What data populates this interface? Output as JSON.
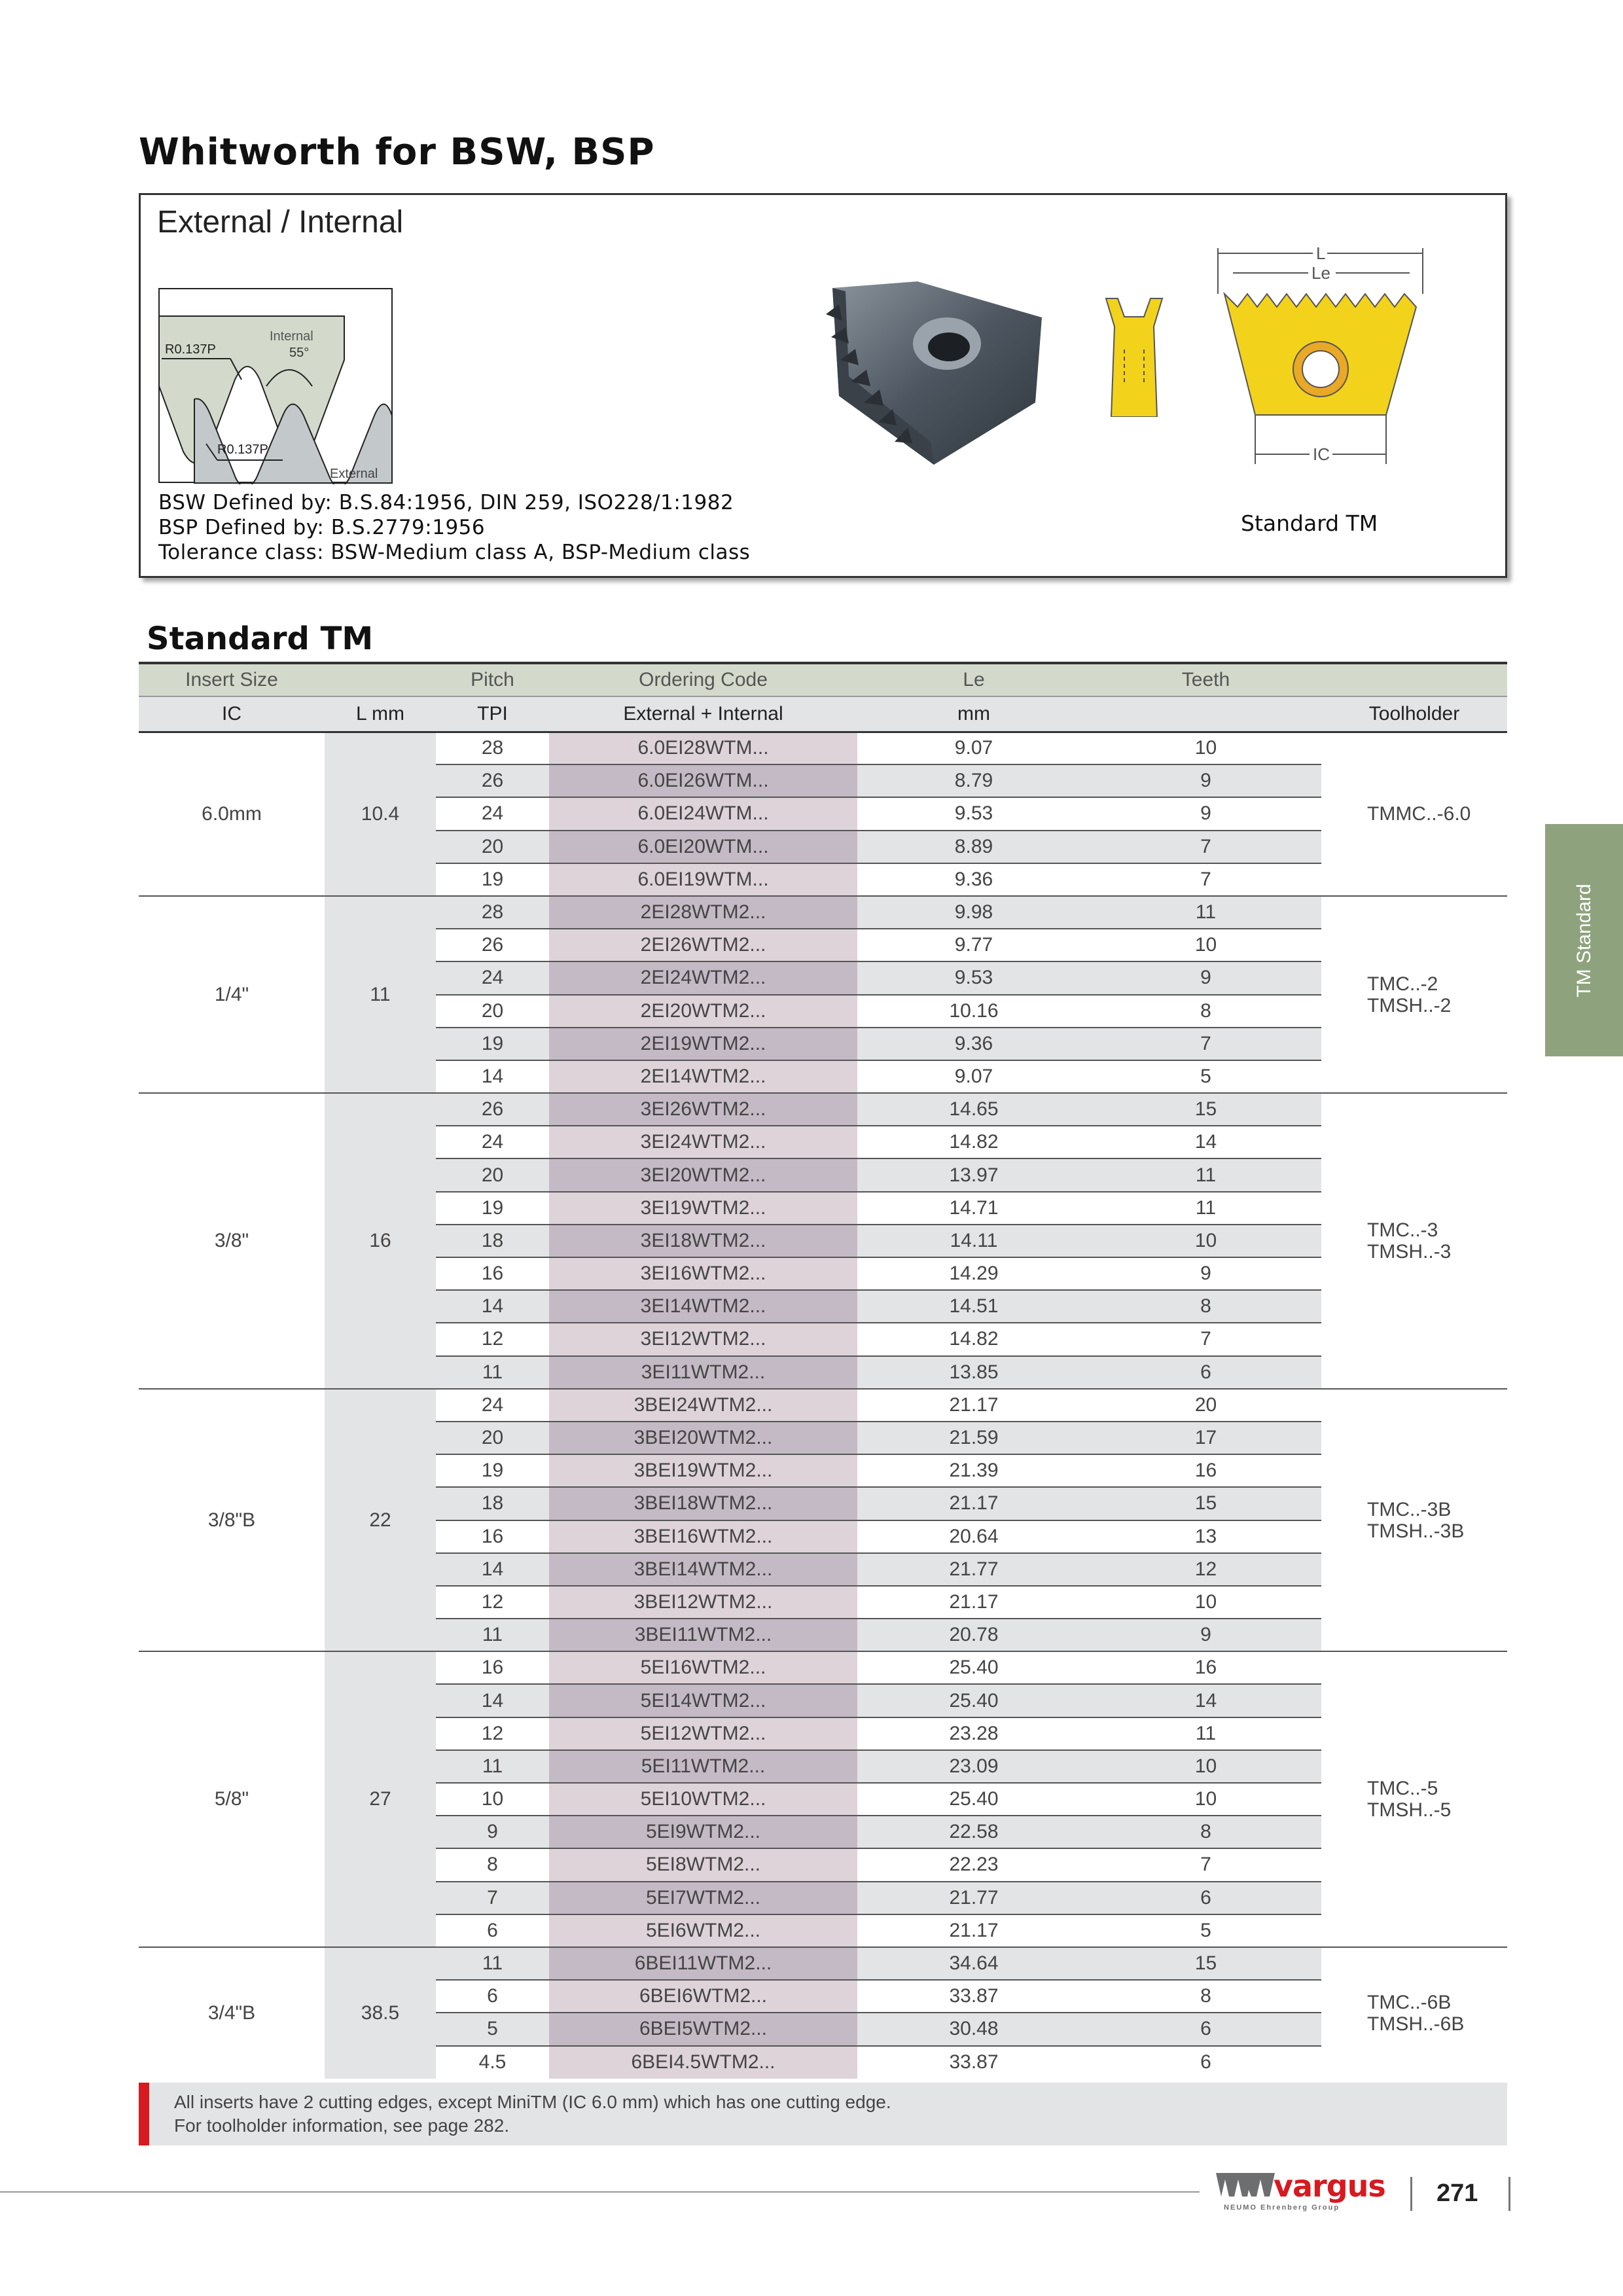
{
  "page_title": "Whitworth for BSW, BSP",
  "info": {
    "heading": "External / Internal",
    "diagram": {
      "r_top": "R0.137P",
      "internal": "Internal",
      "angle": "55°",
      "r_bottom": "R0.137P",
      "external": "External"
    },
    "profile": {
      "L": "L",
      "Le": "Le",
      "IC": "IC"
    },
    "specs": [
      "BSW Defined by: B.S.84:1956, DIN 259, ISO228/1:1982",
      "BSP Defined by: B.S.2779:1956",
      "Tolerance class: BSW-Medium class A, BSP-Medium class"
    ],
    "product_label": "Standard TM"
  },
  "section_title": "Standard TM",
  "table": {
    "header1": [
      "Insert Size",
      "",
      "Pitch",
      "Ordering Code",
      "Le",
      "Teeth",
      ""
    ],
    "header2": [
      "IC",
      "L mm",
      "TPI",
      "External + Internal",
      "mm",
      "",
      "Toolholder"
    ],
    "groups": [
      {
        "ic": "6.0mm",
        "l": "10.4",
        "toolholder": [
          "TMMC..-6.0"
        ],
        "rows": [
          [
            "28",
            "6.0EI28WTM...",
            "9.07",
            "10"
          ],
          [
            "26",
            "6.0EI26WTM...",
            "8.79",
            "9"
          ],
          [
            "24",
            "6.0EI24WTM...",
            "9.53",
            "9"
          ],
          [
            "20",
            "6.0EI20WTM...",
            "8.89",
            "7"
          ],
          [
            "19",
            "6.0EI19WTM...",
            "9.36",
            "7"
          ]
        ]
      },
      {
        "ic": "1/4\"",
        "l": "11",
        "toolholder": [
          "TMC..-2",
          "TMSH..-2"
        ],
        "rows": [
          [
            "28",
            "2EI28WTM2...",
            "9.98",
            "11"
          ],
          [
            "26",
            "2EI26WTM2...",
            "9.77",
            "10"
          ],
          [
            "24",
            "2EI24WTM2...",
            "9.53",
            "9"
          ],
          [
            "20",
            "2EI20WTM2...",
            "10.16",
            "8"
          ],
          [
            "19",
            "2EI19WTM2...",
            "9.36",
            "7"
          ],
          [
            "14",
            "2EI14WTM2...",
            "9.07",
            "5"
          ]
        ]
      },
      {
        "ic": "3/8\"",
        "l": "16",
        "toolholder": [
          "TMC..-3",
          "TMSH..-3"
        ],
        "rows": [
          [
            "26",
            "3EI26WTM2...",
            "14.65",
            "15"
          ],
          [
            "24",
            "3EI24WTM2...",
            "14.82",
            "14"
          ],
          [
            "20",
            "3EI20WTM2...",
            "13.97",
            "11"
          ],
          [
            "19",
            "3EI19WTM2...",
            "14.71",
            "11"
          ],
          [
            "18",
            "3EI18WTM2...",
            "14.11",
            "10"
          ],
          [
            "16",
            "3EI16WTM2...",
            "14.29",
            "9"
          ],
          [
            "14",
            "3EI14WTM2...",
            "14.51",
            "8"
          ],
          [
            "12",
            "3EI12WTM2...",
            "14.82",
            "7"
          ],
          [
            "11",
            "3EI11WTM2...",
            "13.85",
            "6"
          ]
        ]
      },
      {
        "ic": "3/8\"B",
        "l": "22",
        "toolholder": [
          "TMC..-3B",
          "TMSH..-3B"
        ],
        "rows": [
          [
            "24",
            "3BEI24WTM2...",
            "21.17",
            "20"
          ],
          [
            "20",
            "3BEI20WTM2...",
            "21.59",
            "17"
          ],
          [
            "19",
            "3BEI19WTM2...",
            "21.39",
            "16"
          ],
          [
            "18",
            "3BEI18WTM2...",
            "21.17",
            "15"
          ],
          [
            "16",
            "3BEI16WTM2...",
            "20.64",
            "13"
          ],
          [
            "14",
            "3BEI14WTM2...",
            "21.77",
            "12"
          ],
          [
            "12",
            "3BEI12WTM2...",
            "21.17",
            "10"
          ],
          [
            "11",
            "3BEI11WTM2...",
            "20.78",
            "9"
          ]
        ]
      },
      {
        "ic": "5/8\"",
        "l": "27",
        "toolholder": [
          "TMC..-5",
          "TMSH..-5"
        ],
        "rows": [
          [
            "16",
            "5EI16WTM2...",
            "25.40",
            "16"
          ],
          [
            "14",
            "5EI14WTM2...",
            "25.40",
            "14"
          ],
          [
            "12",
            "5EI12WTM2...",
            "23.28",
            "11"
          ],
          [
            "11",
            "5EI11WTM2...",
            "23.09",
            "10"
          ],
          [
            "10",
            "5EI10WTM2...",
            "25.40",
            "10"
          ],
          [
            "9",
            "5EI9WTM2...",
            "22.58",
            "8"
          ],
          [
            "8",
            "5EI8WTM2...",
            "22.23",
            "7"
          ],
          [
            "7",
            "5EI7WTM2...",
            "21.77",
            "6"
          ],
          [
            "6",
            "5EI6WTM2...",
            "21.17",
            "5"
          ]
        ]
      },
      {
        "ic": "3/4\"B",
        "l": "38.5",
        "toolholder": [
          "TMC..-6B",
          "TMSH..-6B"
        ],
        "rows": [
          [
            "11",
            "6BEI11WTM2...",
            "34.64",
            "15"
          ],
          [
            "6",
            "6BEI6WTM2...",
            "33.87",
            "8"
          ],
          [
            "5",
            "6BEI5WTM2...",
            "30.48",
            "6"
          ],
          [
            "4.5",
            "6BEI4.5WTM2...",
            "33.87",
            "6"
          ]
        ]
      }
    ]
  },
  "note": [
    "All inserts have 2 cutting edges, except MiniTM (IC 6.0 mm) which has one cutting edge.",
    "For toolholder information, see page 282."
  ],
  "side_tab": "TM Standard",
  "footer": {
    "logo": "vargus",
    "logo_sub": "NEUMO Ehrenberg Group",
    "page_number": "271"
  },
  "colors": {
    "header_green": "#d3dacb",
    "code_light": "#ddd3d9",
    "code_dark": "#c4bac5",
    "row_gray": "#e3e4e6",
    "note_red": "#d71920",
    "side_tab": "#8ea37d",
    "insert_yellow": "#f3d21b"
  }
}
